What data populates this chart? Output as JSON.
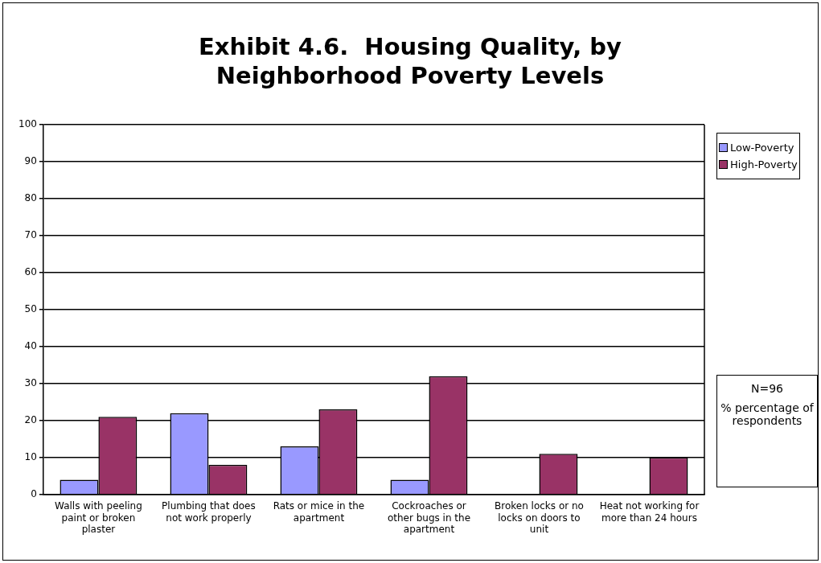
{
  "chart_data": {
    "type": "bar",
    "title": "Exhibit 4.6.  Housing Quality, by Neighborhood Poverty Levels",
    "categories": [
      "Walls with peeling paint or broken plaster",
      "Plumbing that does not work properly",
      "Rats or mice in the apartment",
      "Cockroaches or other bugs in the apartment",
      "Broken locks or no locks on doors to unit",
      "Heat not working for more than 24 hours"
    ],
    "series": [
      {
        "name": "Low-Poverty",
        "color": "#9999ff",
        "values": [
          4,
          22,
          13,
          4,
          0,
          0
        ]
      },
      {
        "name": "High-Poverty",
        "color": "#993366",
        "values": [
          21,
          8,
          23,
          32,
          11,
          10
        ]
      }
    ],
    "ylim": [
      0,
      100
    ],
    "yticks": [
      0,
      10,
      20,
      30,
      40,
      50,
      60,
      70,
      80,
      90,
      100
    ],
    "grid": "y",
    "legend": "top right",
    "annotations": [
      "N=96",
      "% percentage of respondents"
    ]
  }
}
